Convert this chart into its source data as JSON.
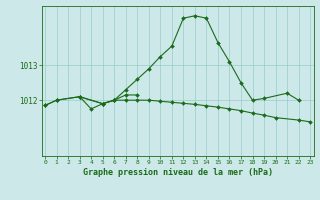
{
  "xlabel": "Graphe pression niveau de la mer (hPa)",
  "bg_color": "#cce8e8",
  "grid_color": "#99cccc",
  "line_color": "#1a6b1a",
  "marker_color": "#1a6b1a",
  "ylim": [
    1010.4,
    1014.7
  ],
  "yticks": [
    1012,
    1013
  ],
  "xlim": [
    -0.3,
    23.3
  ],
  "s1_hours": [
    0,
    1,
    3,
    5,
    6,
    7,
    8,
    9,
    10,
    11,
    12,
    13,
    14,
    15,
    16,
    17,
    18,
    19,
    21,
    22
  ],
  "s1_vals": [
    1011.85,
    1012.0,
    1012.1,
    1011.9,
    1012.0,
    1012.3,
    1012.6,
    1012.9,
    1013.25,
    1013.55,
    1014.35,
    1014.42,
    1014.35,
    1013.65,
    1013.1,
    1012.5,
    1012.0,
    1012.05,
    1012.2,
    1012.0
  ],
  "s2_hours": [
    0,
    1,
    3,
    5,
    6,
    7,
    8,
    9,
    10,
    11,
    12,
    13,
    14,
    15,
    16,
    17,
    18,
    19,
    20,
    22,
    23
  ],
  "s2_vals": [
    1011.85,
    1012.0,
    1012.1,
    1011.9,
    1012.0,
    1012.0,
    1012.0,
    1012.0,
    1011.97,
    1011.94,
    1011.91,
    1011.88,
    1011.84,
    1011.8,
    1011.75,
    1011.7,
    1011.63,
    1011.57,
    1011.5,
    1011.43,
    1011.38
  ],
  "s3_hours": [
    3,
    4,
    5,
    6,
    7,
    8
  ],
  "s3_vals": [
    1012.1,
    1011.75,
    1011.9,
    1012.0,
    1012.15,
    1012.15
  ],
  "xlabel_fontsize": 6.0,
  "ytick_fontsize": 5.5,
  "xtick_fontsize": 4.5
}
